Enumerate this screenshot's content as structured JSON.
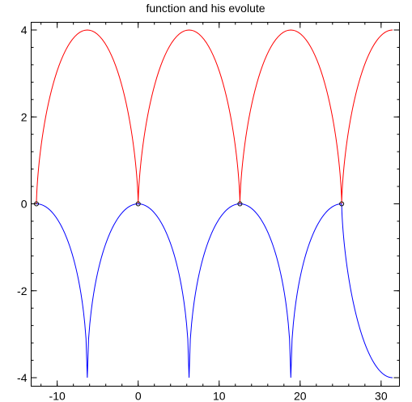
{
  "chart_data": {
    "type": "line",
    "title": "function and his evolute",
    "xlabel": "",
    "ylabel": "",
    "xlim": [
      -12.566,
      31.416
    ],
    "ylim": [
      -4,
      4
    ],
    "x_ticks": [
      -10,
      0,
      10,
      20,
      30
    ],
    "y_ticks": [
      -4,
      -2,
      0,
      2,
      4
    ],
    "x_tick_labels": [
      "-10",
      "0",
      "10",
      "20",
      "30"
    ],
    "y_tick_labels": [
      "-4",
      "-2",
      "0",
      "2",
      "4"
    ],
    "grid": false,
    "series": [
      {
        "color": "#ff0000",
        "x": [
          -12.566,
          -12.455,
          -11.899,
          -10.932,
          -9.428,
          -8.069,
          -6.283,
          -4.498,
          -3.138,
          -1.635,
          -0.668,
          -0.112,
          0,
          0.112,
          0.668,
          1.635,
          3.138,
          4.498,
          6.283,
          8.069,
          9.428,
          10.932,
          11.899,
          12.455,
          12.566,
          12.678,
          13.234,
          14.201,
          15.704,
          17.064,
          18.85,
          20.635,
          21.995,
          23.498,
          24.465,
          25.021,
          25.133,
          25.245,
          25.8,
          26.768,
          28.271,
          29.631,
          31.416
        ],
        "y": [
          0,
          0.536,
          1.255,
          2.0,
          2.866,
          3.414,
          4.0,
          3.414,
          2.866,
          2.0,
          1.255,
          0.536,
          0,
          0.536,
          1.255,
          2.0,
          2.866,
          3.414,
          4.0,
          3.414,
          2.866,
          2.0,
          1.255,
          0.536,
          0,
          0.536,
          1.255,
          2.0,
          2.866,
          3.414,
          4.0,
          3.414,
          2.866,
          2.0,
          1.255,
          0.536,
          0,
          0.536,
          1.255,
          2.0,
          2.866,
          3.414,
          4.0
        ]
      },
      {
        "color": "#0000ff",
        "x": [
          -12.566,
          -12.455,
          -11.899,
          -10.932,
          -9.428,
          -8.069,
          -6.283,
          -4.498,
          -3.138,
          -1.635,
          -0.668,
          -0.112,
          0,
          0.112,
          0.668,
          1.635,
          3.138,
          4.498,
          6.283,
          8.069,
          9.428,
          10.932,
          11.899,
          12.455,
          12.566,
          12.678,
          13.234,
          14.201,
          15.704,
          17.064,
          18.85,
          20.635,
          21.995,
          23.498,
          24.465,
          25.021,
          25.133,
          25.245,
          25.8,
          26.768,
          28.271,
          29.631,
          31.416
        ],
        "y": [
          0,
          -0.018,
          -0.134,
          -0.432,
          -1.134,
          -1.854,
          -4.0,
          -1.854,
          -1.134,
          -0.432,
          -0.134,
          -0.018,
          0,
          -0.018,
          -0.134,
          -0.432,
          -1.134,
          -1.854,
          -4.0,
          -1.854,
          -1.134,
          -0.432,
          -0.134,
          -0.018,
          0,
          -0.018,
          -0.134,
          -0.432,
          -1.134,
          -1.854,
          -4.0,
          -1.854,
          -1.134,
          -0.432,
          -0.134,
          -0.018,
          0,
          -0.018,
          -0.134,
          -0.432,
          -1.134,
          -1.854,
          -4.0
        ]
      }
    ],
    "markers": {
      "x": [
        -12.566,
        0,
        12.566,
        25.133
      ],
      "y": [
        0,
        0,
        0,
        0
      ]
    }
  }
}
